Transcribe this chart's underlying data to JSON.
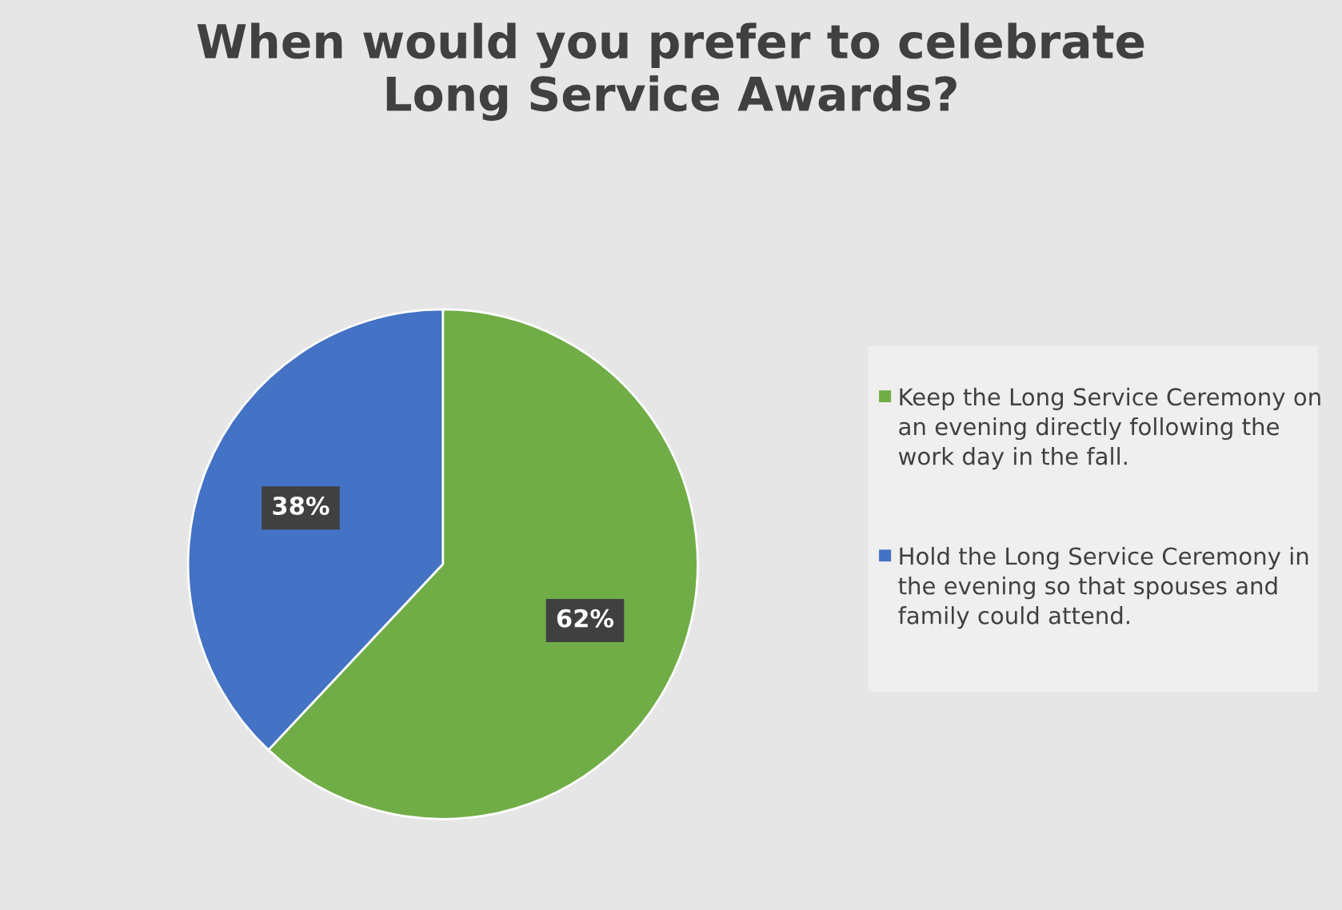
{
  "chart_data": {
    "type": "pie",
    "title": "When would you prefer to celebrate\nLong Service Awards?",
    "categories": [
      "Keep the Long Service Ceremony on an evening directly following the work day in the fall.",
      "Hold the Long Service Ceremony in the evening so that spouses and family could attend."
    ],
    "values": [
      62,
      38
    ],
    "colors": [
      "#70ad47",
      "#4472c4"
    ],
    "value_labels": [
      "62%",
      "38%"
    ],
    "legend": "right"
  }
}
